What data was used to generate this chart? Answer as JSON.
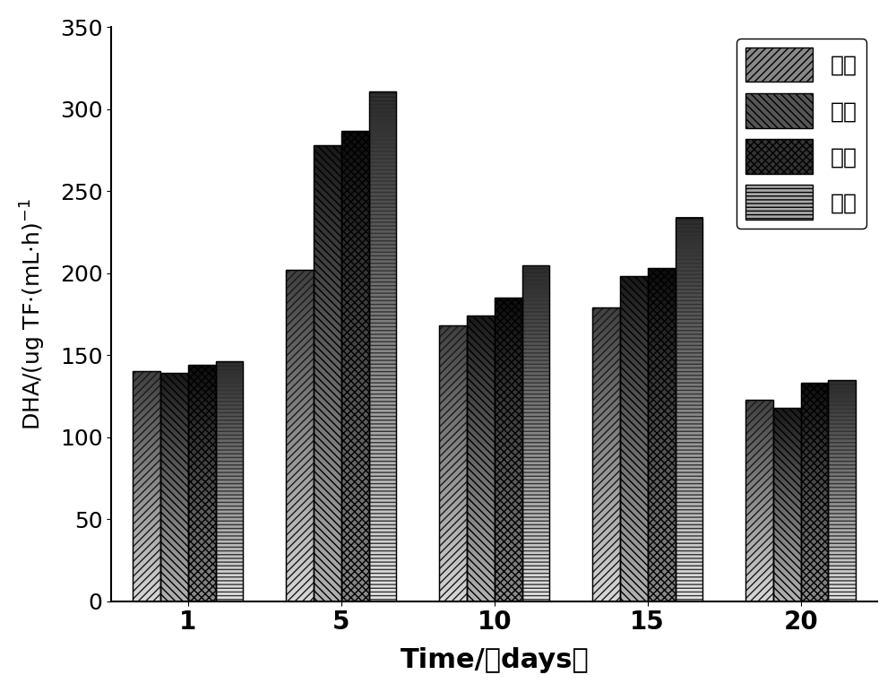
{
  "categories": [
    1,
    5,
    10,
    15,
    20
  ],
  "series_order": [
    "空白",
    "例一",
    "例二",
    "例三"
  ],
  "series": {
    "空白": [
      140,
      202,
      168,
      179,
      123
    ],
    "例一": [
      139,
      278,
      174,
      198,
      118
    ],
    "例二": [
      144,
      287,
      185,
      203,
      133
    ],
    "例三": [
      146,
      311,
      205,
      234,
      135
    ]
  },
  "ylabel": "DHA/(ug TF·(mL·h)$^{-1}$",
  "xlabel": "Time/（days）",
  "ylim": [
    0,
    350
  ],
  "yticks": [
    0,
    50,
    100,
    150,
    200,
    250,
    300,
    350
  ],
  "legend_labels": [
    "空白",
    "例一",
    "例二",
    "例三"
  ],
  "bar_width": 0.18,
  "background_color": "#ffffff",
  "edge_color": "#000000"
}
